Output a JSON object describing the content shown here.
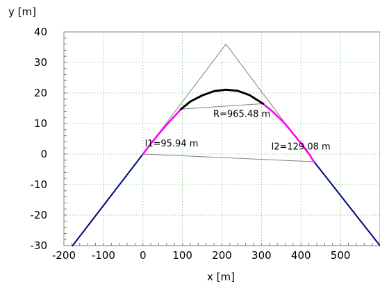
{
  "chart_data": {
    "type": "line",
    "xlabel": "x [m]",
    "ylabel": "y [m]",
    "xlim": [
      -200,
      600
    ],
    "ylim": [
      -30,
      40
    ],
    "xticks": [
      -200,
      -100,
      0,
      100,
      200,
      300,
      400,
      500
    ],
    "yticks": [
      -30,
      -20,
      -10,
      0,
      10,
      20,
      30,
      40
    ],
    "grid": true,
    "colors": {
      "tangent": "#000080",
      "transition": "#ff00ff",
      "arc": "#000000",
      "construction": "#808080",
      "grid": "#6fbf6f"
    },
    "series": [
      {
        "key": "left-tangent",
        "style": "tangent",
        "x": [
          -178,
          0
        ],
        "y": [
          -30,
          0
        ]
      },
      {
        "key": "right-tangent",
        "style": "tangent",
        "x": [
          433,
          600
        ],
        "y": [
          -2.5,
          -30
        ]
      },
      {
        "key": "left-transition",
        "style": "transition",
        "x": [
          0,
          20,
          40,
          60,
          80,
          96
        ],
        "y": [
          0,
          3.4,
          6.6,
          9.6,
          12.4,
          14.7
        ]
      },
      {
        "key": "right-transition",
        "style": "transition",
        "x": [
          304,
          330,
          360,
          390,
          415,
          433
        ],
        "y": [
          16.5,
          13.7,
          9.9,
          5.1,
          1.1,
          -2.5
        ]
      },
      {
        "key": "circular-arc",
        "style": "arc",
        "x": [
          96,
          120,
          150,
          180,
          210,
          240,
          270,
          304
        ],
        "y": [
          14.7,
          17.2,
          19.2,
          20.6,
          21.1,
          20.7,
          19.3,
          16.5
        ]
      }
    ],
    "construction_lines": [
      {
        "key": "left-tangent-extension",
        "x": [
          0,
          210
        ],
        "y": [
          0,
          36
        ]
      },
      {
        "key": "right-tangent-extension",
        "x": [
          210,
          433
        ],
        "y": [
          36,
          -2.5
        ]
      },
      {
        "key": "arc-chord",
        "x": [
          96,
          304
        ],
        "y": [
          14.7,
          16.5
        ]
      },
      {
        "key": "ts-st-chord",
        "x": [
          0,
          433
        ],
        "y": [
          0,
          -2.5
        ]
      }
    ],
    "annotations": [
      {
        "key": "radius-label",
        "text": "R=965.48 m",
        "x": 178,
        "y": 12.2
      },
      {
        "key": "l1-label",
        "text": "l1=95.94 m",
        "x": 5,
        "y": 2.5
      },
      {
        "key": "l2-label",
        "text": "l2=129.08 m",
        "x": 325,
        "y": 1.5
      }
    ]
  }
}
